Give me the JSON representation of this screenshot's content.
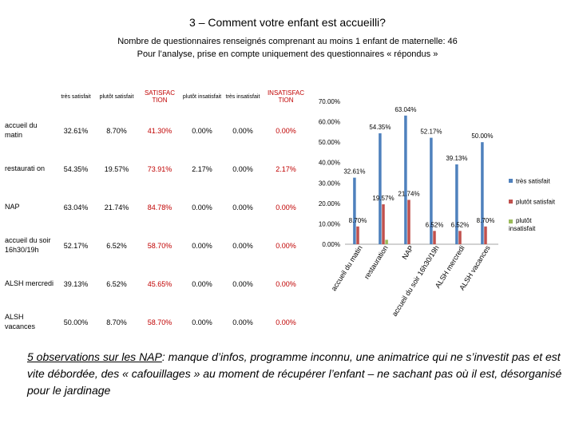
{
  "slide": {
    "title": "3 – Comment votre enfant est accueilli?",
    "subtitle_line1": "Nombre de questionnaires renseignés comprenant au moins 1 enfant de maternelle: 46",
    "subtitle_line2": "Pour l’analyse, prise en compte uniquement des questionnaires « répondus »"
  },
  "table": {
    "headers": [
      "très satisfait",
      "plutôt satisfait",
      "SATISFAC TION",
      "plutôt insatisfait",
      "très insatisfait",
      "INSATISFAC TION"
    ],
    "rows": [
      {
        "label": "accueil du matin",
        "values": [
          "32.61%",
          "8.70%",
          "41.30%",
          "0.00%",
          "0.00%",
          "0.00%"
        ]
      },
      {
        "label": "restaurati on",
        "values": [
          "54.35%",
          "19.57%",
          "73.91%",
          "2.17%",
          "0.00%",
          "2.17%"
        ]
      },
      {
        "label": "NAP",
        "values": [
          "63.04%",
          "21.74%",
          "84.78%",
          "0.00%",
          "0.00%",
          "0.00%"
        ]
      },
      {
        "label": "accueil du soir 16h30/19h",
        "values": [
          "52.17%",
          "6.52%",
          "58.70%",
          "0.00%",
          "0.00%",
          "0.00%"
        ]
      },
      {
        "label": "ALSH mercredi",
        "values": [
          "39.13%",
          "6.52%",
          "45.65%",
          "0.00%",
          "0.00%",
          "0.00%"
        ]
      },
      {
        "label": "ALSH vacances",
        "values": [
          "50.00%",
          "8.70%",
          "58.70%",
          "0.00%",
          "0.00%",
          "0.00%"
        ]
      }
    ]
  },
  "chart_data": {
    "type": "bar",
    "categories": [
      "accueil du matin",
      "restauration",
      "NAP",
      "accueil du soir 16h30/19h",
      "ALSH mercredi",
      "ALSH vacances"
    ],
    "series": [
      {
        "name": "très satisfait",
        "values": [
          32.61,
          54.35,
          63.04,
          52.17,
          39.13,
          50.0
        ]
      },
      {
        "name": "plutôt satisfait",
        "values": [
          8.7,
          19.57,
          21.74,
          6.52,
          6.52,
          8.7
        ]
      },
      {
        "name": "plutôt insatisfait",
        "values": [
          0,
          2.17,
          0,
          0,
          0,
          0
        ]
      }
    ],
    "data_labels": [
      [
        "32.61%",
        "54.35%",
        "63.04%",
        "52.17%",
        "39.13%",
        "50.00%"
      ],
      [
        "8.70%",
        "19.57%",
        "21.74%",
        "6.52%",
        "6.52%",
        "8.70%"
      ],
      [
        "",
        "",
        "",
        "",
        "",
        ""
      ]
    ],
    "ylim": [
      0,
      70
    ],
    "yticks": [
      "0.00%",
      "10.00%",
      "20.00%",
      "30.00%",
      "40.00%",
      "50.00%",
      "60.00%",
      "70.00%"
    ],
    "colors": [
      "#4f81bd",
      "#c0504d",
      "#9bbb59"
    ],
    "legend": "right",
    "grid": false
  },
  "observations": {
    "lead": "5 observations sur les NAP",
    "text": ": manque d’infos, programme inconnu, une animatrice qui ne s’investit pas et est vite débordée, des « cafouillages » au moment de récupérer l’enfant – ne sachant pas où il est, désorganisé pour le jardinage"
  }
}
